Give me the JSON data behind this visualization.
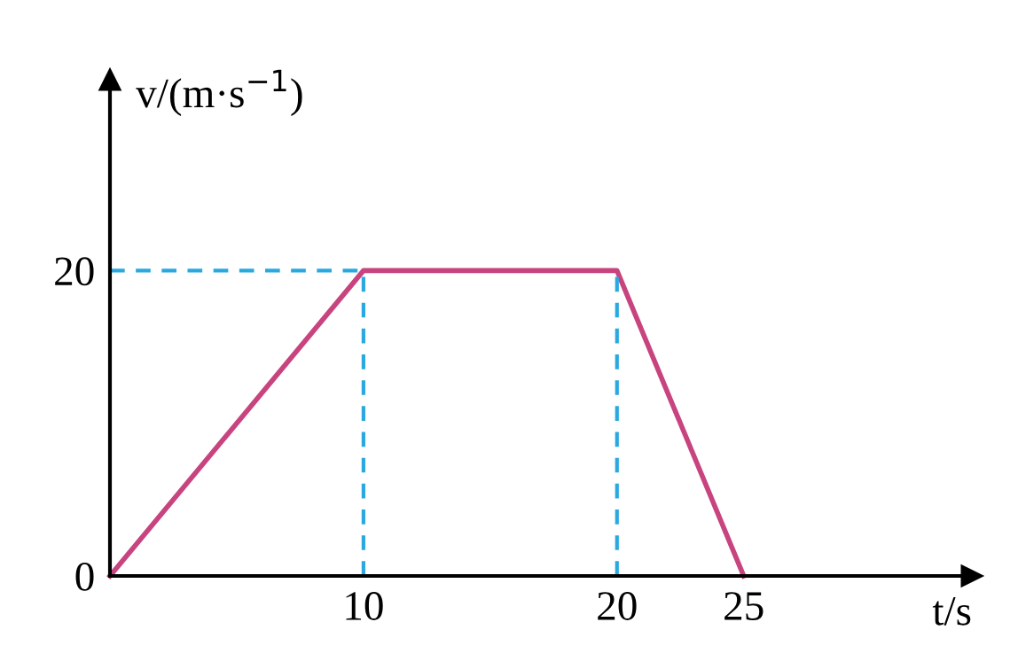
{
  "chart_data": {
    "type": "line",
    "xlabel": "t/s",
    "ylabel": "v/(m·s$^{−1}$)",
    "xlim": [
      0,
      34
    ],
    "ylim": [
      0,
      32.5
    ],
    "xticks": [
      10,
      20,
      25
    ],
    "yticks": [
      0,
      20
    ],
    "grid": false,
    "legend": false,
    "marker": "none",
    "series": [
      {
        "x": [
          0,
          10,
          20,
          25
        ],
        "values": [
          0,
          20,
          20,
          0
        ],
        "color": "#c8447f",
        "line_style": "solid"
      },
      {
        "x": [
          0,
          10
        ],
        "values": [
          20,
          20
        ],
        "color": "#2aa8e0",
        "line_style": "dashed"
      },
      {
        "x": [
          10,
          10
        ],
        "values": [
          0,
          20
        ],
        "color": "#2aa8e0",
        "line_style": "dashed"
      },
      {
        "x": [
          20,
          20
        ],
        "values": [
          0,
          20
        ],
        "color": "#2aa8e0",
        "line_style": "dashed"
      }
    ]
  }
}
